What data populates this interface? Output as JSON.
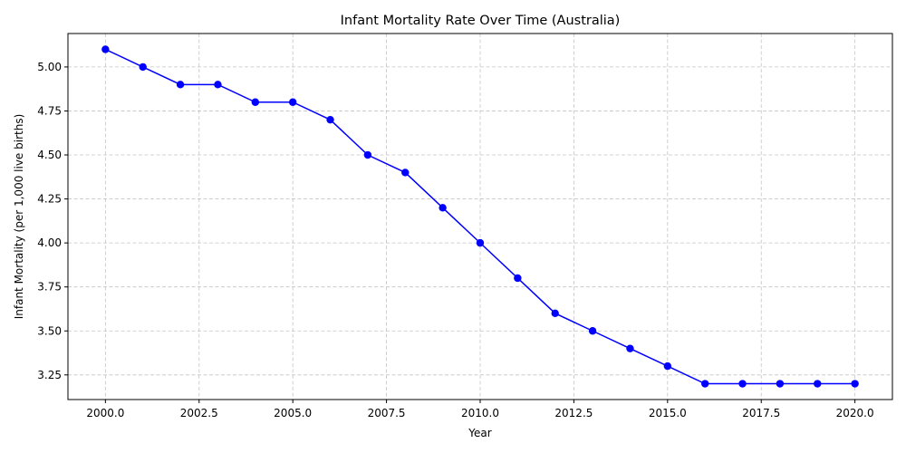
{
  "chart_data": {
    "type": "line",
    "title": "Infant Mortality Rate Over Time (Australia)",
    "xlabel": "Year",
    "ylabel": "Infant Mortality (per 1,000 live births)",
    "xlim": [
      1999,
      2021
    ],
    "ylim": [
      3.11,
      5.19
    ],
    "x_ticks": [
      2000.0,
      2002.5,
      2005.0,
      2007.5,
      2010.0,
      2012.5,
      2015.0,
      2017.5,
      2020.0
    ],
    "x_tick_labels": [
      "2000.0",
      "2002.5",
      "2005.0",
      "2007.5",
      "2010.0",
      "2012.5",
      "2015.0",
      "2017.5",
      "2020.0"
    ],
    "y_ticks": [
      3.25,
      3.5,
      3.75,
      4.0,
      4.25,
      4.5,
      4.75,
      5.0
    ],
    "y_tick_labels": [
      "3.25",
      "3.50",
      "3.75",
      "4.00",
      "4.25",
      "4.50",
      "4.75",
      "5.00"
    ],
    "grid": true,
    "grid_style": "dashed",
    "series": [
      {
        "color": "#0000ff",
        "marker": "circle",
        "x": [
          2000,
          2001,
          2002,
          2003,
          2004,
          2005,
          2006,
          2007,
          2008,
          2009,
          2010,
          2011,
          2012,
          2013,
          2014,
          2015,
          2016,
          2017,
          2018,
          2019,
          2020
        ],
        "y": [
          5.1,
          5.0,
          4.9,
          4.9,
          4.8,
          4.8,
          4.7,
          4.5,
          4.4,
          4.2,
          4.0,
          3.8,
          3.6,
          3.5,
          3.4,
          3.3,
          3.2,
          3.2,
          3.2,
          3.2,
          3.2
        ]
      }
    ]
  }
}
